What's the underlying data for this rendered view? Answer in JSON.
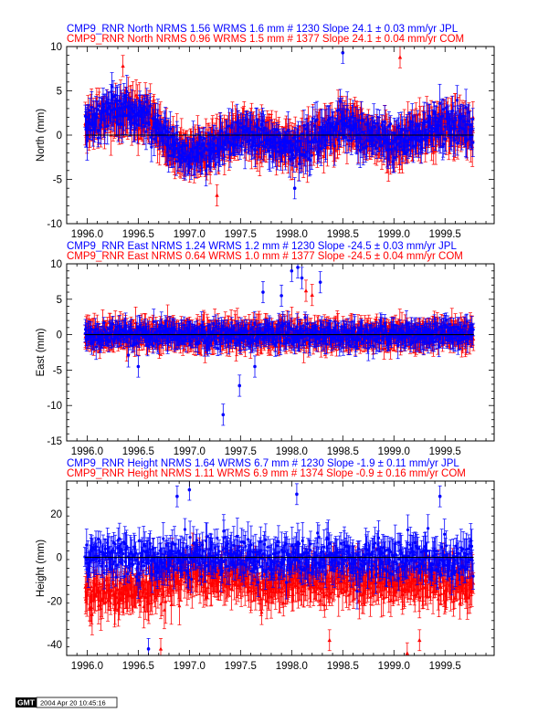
{
  "chart_data": [
    {
      "type": "scatter",
      "panel": "north",
      "titles": [
        {
          "text": "CMP9_RNR North NRMS 1.56 WRMS  1.6 mm # 1230 Slope   24.1 ±  0.03 mm/yr JPL",
          "color": "#0000ff"
        },
        {
          "text": "CMP9_RNR North NRMS 0.96 WRMS  1.5 mm # 1377 Slope   24.1 ±  0.04 mm/yr COM",
          "color": "#ff0000"
        }
      ],
      "ylabel": "North (mm)",
      "xlim": [
        1995.8,
        1999.98
      ],
      "ylim": [
        -10,
        10
      ],
      "xticks": [
        "1996.0",
        "1996.5",
        "1997.0",
        "1997.5",
        "1998.0",
        "1998.5",
        "1999.0",
        "1999.5"
      ],
      "xtick_values": [
        1996.0,
        1996.5,
        1997.0,
        1997.5,
        1998.0,
        1998.5,
        1999.0,
        1999.5
      ],
      "yticks": [
        "-10",
        "-5",
        "0",
        "5",
        "10"
      ],
      "ytick_values": [
        -10,
        -5,
        0,
        5,
        10
      ],
      "series": [
        {
          "color": "#ff0000",
          "marker": "triangle",
          "count": 1377,
          "x_range": [
            1995.98,
            1999.78
          ],
          "trend": [
            [
              1996.0,
              1.5
            ],
            [
              1996.3,
              2.5
            ],
            [
              1996.6,
              2.0
            ],
            [
              1996.8,
              -1.0
            ],
            [
              1997.0,
              -2.5
            ],
            [
              1997.2,
              -1.5
            ],
            [
              1997.5,
              0.5
            ],
            [
              1997.8,
              -0.8
            ],
            [
              1998.0,
              -1.5
            ],
            [
              1998.3,
              0.0
            ],
            [
              1998.5,
              1.5
            ],
            [
              1998.7,
              0.2
            ],
            [
              1999.0,
              -1.0
            ],
            [
              1999.3,
              0.5
            ],
            [
              1999.5,
              1.0
            ],
            [
              1999.78,
              0.3
            ]
          ],
          "scatter": 1.4,
          "error": 1.8
        },
        {
          "color": "#0000ff",
          "marker": "circle",
          "count": 1230,
          "x_range": [
            1995.98,
            1999.78
          ],
          "trend": [
            [
              1996.0,
              1.5
            ],
            [
              1996.3,
              3.0
            ],
            [
              1996.6,
              2.0
            ],
            [
              1996.8,
              -1.0
            ],
            [
              1997.0,
              -2.5
            ],
            [
              1997.2,
              -1.5
            ],
            [
              1997.5,
              0.5
            ],
            [
              1997.8,
              -0.8
            ],
            [
              1998.0,
              -1.5
            ],
            [
              1998.3,
              0.0
            ],
            [
              1998.5,
              1.5
            ],
            [
              1998.7,
              0.2
            ],
            [
              1999.0,
              -1.0
            ],
            [
              1999.3,
              0.5
            ],
            [
              1999.5,
              1.0
            ],
            [
              1999.78,
              0.3
            ]
          ],
          "scatter": 1.5,
          "error": 1.5
        }
      ],
      "outliers": [
        {
          "x": 1998.5,
          "y": 9.3,
          "color": "#0000ff"
        },
        {
          "x": 1999.06,
          "y": 8.8,
          "color": "#ff0000"
        },
        {
          "x": 1997.27,
          "y": -6.8,
          "color": "#ff0000"
        },
        {
          "x": 1998.03,
          "y": -6.0,
          "color": "#0000ff"
        },
        {
          "x": 1996.35,
          "y": 7.8,
          "color": "#ff0000"
        }
      ]
    },
    {
      "type": "scatter",
      "panel": "east",
      "titles": [
        {
          "text": "CMP9_RNR East NRMS 1.24 WRMS  1.2 mm # 1230 Slope  -24.5 ±  0.03 mm/yr JPL",
          "color": "#0000ff"
        },
        {
          "text": "CMP9_RNR East NRMS 0.64 WRMS  1.0 mm # 1377 Slope  -24.5 ±  0.04 mm/yr COM",
          "color": "#ff0000"
        }
      ],
      "ylabel": "East (mm)",
      "xlim": [
        1995.8,
        1999.98
      ],
      "ylim": [
        -15,
        10
      ],
      "xticks": [
        "1996.0",
        "1996.5",
        "1997.0",
        "1997.5",
        "1998.0",
        "1998.5",
        "1999.0",
        "1999.5"
      ],
      "xtick_values": [
        1996.0,
        1996.5,
        1997.0,
        1997.5,
        1998.0,
        1998.5,
        1999.0,
        1999.5
      ],
      "yticks": [
        "-15",
        "-10",
        "-5",
        "0",
        "5",
        "10"
      ],
      "ytick_values": [
        -15,
        -10,
        -5,
        0,
        5,
        10
      ],
      "series": [
        {
          "color": "#ff0000",
          "marker": "triangle",
          "count": 1377,
          "x_range": [
            1995.98,
            1999.78
          ],
          "trend": [
            [
              1996.0,
              0.0
            ],
            [
              1999.78,
              0.0
            ]
          ],
          "scatter": 1.0,
          "error": 1.6
        },
        {
          "color": "#0000ff",
          "marker": "circle",
          "count": 1230,
          "x_range": [
            1995.98,
            1999.78
          ],
          "trend": [
            [
              1996.0,
              0.0
            ],
            [
              1999.78,
              0.0
            ]
          ],
          "scatter": 1.1,
          "error": 1.3
        }
      ],
      "outliers": [
        {
          "x": 1997.33,
          "y": -11.3,
          "color": "#0000ff"
        },
        {
          "x": 1997.49,
          "y": -7.2,
          "color": "#0000ff"
        },
        {
          "x": 1998.0,
          "y": 9.0,
          "color": "#0000ff"
        },
        {
          "x": 1998.06,
          "y": 9.5,
          "color": "#0000ff"
        },
        {
          "x": 1998.1,
          "y": 8.0,
          "color": "#0000ff"
        },
        {
          "x": 1998.28,
          "y": 7.4,
          "color": "#0000ff"
        },
        {
          "x": 1997.72,
          "y": 6.0,
          "color": "#0000ff"
        },
        {
          "x": 1997.9,
          "y": 5.5,
          "color": "#0000ff"
        },
        {
          "x": 1998.14,
          "y": 6.2,
          "color": "#ff0000"
        },
        {
          "x": 1998.2,
          "y": 5.6,
          "color": "#ff0000"
        },
        {
          "x": 1996.5,
          "y": -4.5,
          "color": "#0000ff"
        },
        {
          "x": 1997.64,
          "y": -4.5,
          "color": "#0000ff"
        }
      ]
    },
    {
      "type": "scatter",
      "panel": "height",
      "titles": [
        {
          "text": "CMP9_RNR Height NRMS 1.64 WRMS  6.7 mm # 1230 Slope   -1.9 ±  0.11 mm/yr JPL",
          "color": "#0000ff"
        },
        {
          "text": "CMP9_RNR Height NRMS 1.11 WRMS  6.9 mm # 1374 Slope   -0.9 ±  0.16 mm/yr COM",
          "color": "#ff0000"
        }
      ],
      "ylabel": "Height (mm)",
      "xlim": [
        1995.8,
        1999.98
      ],
      "ylim": [
        -45,
        35
      ],
      "xticks": [
        "1996.0",
        "1996.5",
        "1997.0",
        "1997.5",
        "1998.0",
        "1998.5",
        "1999.0",
        "1999.5"
      ],
      "xtick_values": [
        1996.0,
        1996.5,
        1997.0,
        1997.5,
        1998.0,
        1998.5,
        1999.0,
        1999.5
      ],
      "yticks": [
        "-40",
        "-20",
        "0",
        "20"
      ],
      "ytick_values": [
        -40,
        -20,
        0,
        20
      ],
      "series": [
        {
          "color": "#ff0000",
          "marker": "triangle",
          "count": 1374,
          "x_range": [
            1995.98,
            1999.78
          ],
          "trend": [
            [
              1996.0,
              -16
            ],
            [
              1996.5,
              -15
            ],
            [
              1997.0,
              -8
            ],
            [
              1997.5,
              -10
            ],
            [
              1998.0,
              -12
            ],
            [
              1998.5,
              -10
            ],
            [
              1999.0,
              -12
            ],
            [
              1999.5,
              -11
            ],
            [
              1999.78,
              -10
            ]
          ],
          "scatter": 6.5,
          "error": 7.0
        },
        {
          "color": "#0000ff",
          "marker": "circle",
          "count": 1230,
          "x_range": [
            1995.98,
            1999.78
          ],
          "trend": [
            [
              1996.0,
              0
            ],
            [
              1999.78,
              0
            ]
          ],
          "scatter": 6.5,
          "error": 6.0
        }
      ],
      "outliers": [
        {
          "x": 1997.0,
          "y": 31,
          "color": "#0000ff"
        },
        {
          "x": 1996.88,
          "y": 28,
          "color": "#0000ff"
        },
        {
          "x": 1998.05,
          "y": 29,
          "color": "#0000ff"
        },
        {
          "x": 1999.45,
          "y": 28,
          "color": "#0000ff"
        },
        {
          "x": 1996.6,
          "y": -42,
          "color": "#0000ff"
        },
        {
          "x": 1998.37,
          "y": -38,
          "color": "#ff0000"
        },
        {
          "x": 1999.25,
          "y": -38,
          "color": "#ff0000"
        },
        {
          "x": 1999.13,
          "y": -44,
          "color": "#ff0000"
        },
        {
          "x": 1996.72,
          "y": -42,
          "color": "#ff0000"
        }
      ]
    }
  ],
  "footer": {
    "logo_text": "GMT",
    "timestamp": "2004 Apr 20 10:45:16"
  }
}
